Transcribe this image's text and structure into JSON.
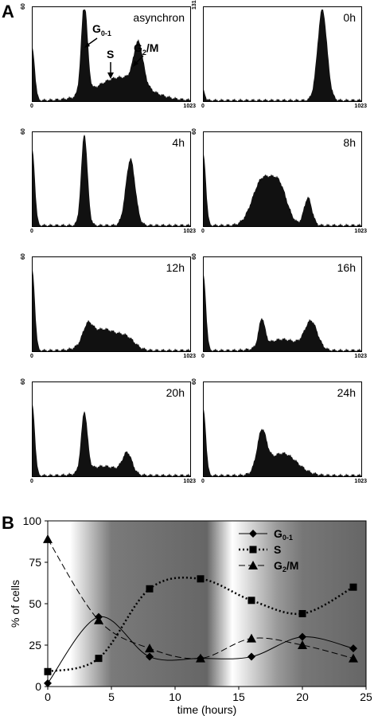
{
  "panel_a_label": "A",
  "panel_b_label": "B",
  "histograms": [
    {
      "title": "asynchron",
      "ymax": "60",
      "xmin": "0",
      "xmax": "1023"
    },
    {
      "title": "0h",
      "ymax": "131",
      "xmin": "0",
      "xmax": "1023"
    },
    {
      "title": "4h",
      "ymax": "60",
      "xmin": "0",
      "xmax": "1023"
    },
    {
      "title": "8h",
      "ymax": "60",
      "xmin": "0",
      "xmax": "1023"
    },
    {
      "title": "12h",
      "ymax": "60",
      "xmin": "0",
      "xmax": "1023"
    },
    {
      "title": "16h",
      "ymax": "60",
      "xmin": "0",
      "xmax": "1023"
    },
    {
      "title": "20h",
      "ymax": "60",
      "xmin": "0",
      "xmax": "1023"
    },
    {
      "title": "24h",
      "ymax": "60",
      "xmin": "0",
      "xmax": "1023"
    }
  ],
  "annotations": {
    "g01": "G",
    "g01_sub": "0-1",
    "s": "S",
    "g2m": "G",
    "g2m_sub": "2",
    "g2m_tail": "/M"
  },
  "chart_data": {
    "type": "line",
    "xlabel": "time (hours)",
    "ylabel": "% of cells",
    "xlim": [
      0,
      25
    ],
    "ylim": [
      0,
      100
    ],
    "xticks": [
      0,
      5,
      10,
      15,
      20,
      25
    ],
    "yticks": [
      0,
      25,
      50,
      75,
      100
    ],
    "legend_position": "top-right",
    "legend": [
      {
        "label": "G",
        "sub": "0-1",
        "tail": ""
      },
      {
        "label": "S",
        "sub": "",
        "tail": ""
      },
      {
        "label": "G",
        "sub": "2",
        "tail": "/M"
      }
    ],
    "series": [
      {
        "name": "G0-1",
        "marker": "diamond",
        "dash": "solid",
        "x": [
          0,
          4,
          8,
          12,
          16,
          20,
          24
        ],
        "y": [
          2,
          42,
          18,
          17,
          18,
          30,
          23
        ]
      },
      {
        "name": "S",
        "marker": "square",
        "dash": "dotted",
        "x": [
          0,
          4,
          8,
          12,
          16,
          20,
          24
        ],
        "y": [
          9,
          17,
          59,
          65,
          52,
          44,
          60
        ]
      },
      {
        "name": "G2/M",
        "marker": "triangle",
        "dash": "dashed",
        "x": [
          0,
          4,
          8,
          12,
          16,
          20,
          24
        ],
        "y": [
          89,
          40,
          23,
          17,
          29,
          25,
          17
        ]
      }
    ]
  }
}
